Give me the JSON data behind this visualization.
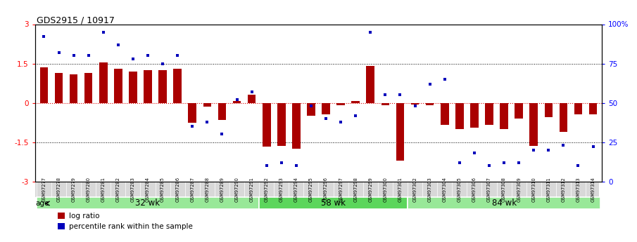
{
  "title": "GDS2915 / 10917",
  "samples": [
    "GSM97277",
    "GSM97278",
    "GSM97279",
    "GSM97280",
    "GSM97281",
    "GSM97282",
    "GSM97283",
    "GSM97284",
    "GSM97285",
    "GSM97286",
    "GSM97287",
    "GSM97288",
    "GSM97289",
    "GSM97290",
    "GSM97291",
    "GSM97292",
    "GSM97293",
    "GSM97294",
    "GSM97295",
    "GSM97296",
    "GSM97297",
    "GSM97298",
    "GSM97299",
    "GSM97300",
    "GSM97301",
    "GSM97302",
    "GSM97303",
    "GSM97304",
    "GSM97305",
    "GSM97306",
    "GSM97307",
    "GSM97308",
    "GSM97309",
    "GSM97310",
    "GSM97311",
    "GSM97312",
    "GSM97313",
    "GSM97314"
  ],
  "log_ratio": [
    1.35,
    1.15,
    1.1,
    1.15,
    1.55,
    1.3,
    1.2,
    1.25,
    1.25,
    1.3,
    -0.75,
    -0.15,
    -0.65,
    0.07,
    0.3,
    -1.68,
    -1.63,
    -1.75,
    -0.5,
    -0.45,
    -0.08,
    0.07,
    1.42,
    -0.08,
    -2.2,
    -0.05,
    -0.08,
    -0.85,
    -1.0,
    -0.95,
    -0.85,
    -1.0,
    -0.6,
    -1.65,
    -0.55,
    -1.1,
    -0.45,
    -0.45
  ],
  "percentile": [
    92,
    82,
    80,
    80,
    95,
    87,
    78,
    80,
    75,
    80,
    35,
    38,
    30,
    52,
    57,
    10,
    12,
    10,
    48,
    40,
    38,
    42,
    95,
    55,
    55,
    48,
    62,
    65,
    12,
    18,
    10,
    12,
    12,
    20,
    20,
    23,
    10,
    22
  ],
  "groups": [
    {
      "label": "32 wk",
      "start": 0,
      "end": 14
    },
    {
      "label": "58 wk",
      "start": 15,
      "end": 24
    },
    {
      "label": "84 wk",
      "start": 25,
      "end": 37
    }
  ],
  "group_colors": [
    "#98E898",
    "#5CD65C",
    "#98E898"
  ],
  "bar_color": "#AA0000",
  "dot_color": "#0000BB",
  "zero_line_color": "#DD0000",
  "hline_color": "#000000",
  "ylim": [
    -3,
    3
  ],
  "yticks": [
    -3,
    -1.5,
    0,
    1.5,
    3
  ],
  "y2ticks": [
    0,
    25,
    50,
    75,
    100
  ],
  "y2ticklabels": [
    "0",
    "25",
    "50",
    "75",
    "100%"
  ],
  "tick_label_bg": "#D8D8D8",
  "legend_items": [
    {
      "label": "log ratio",
      "color": "#AA0000"
    },
    {
      "label": "percentile rank within the sample",
      "color": "#0000BB"
    }
  ],
  "age_label": "age",
  "background_color": "#ffffff"
}
